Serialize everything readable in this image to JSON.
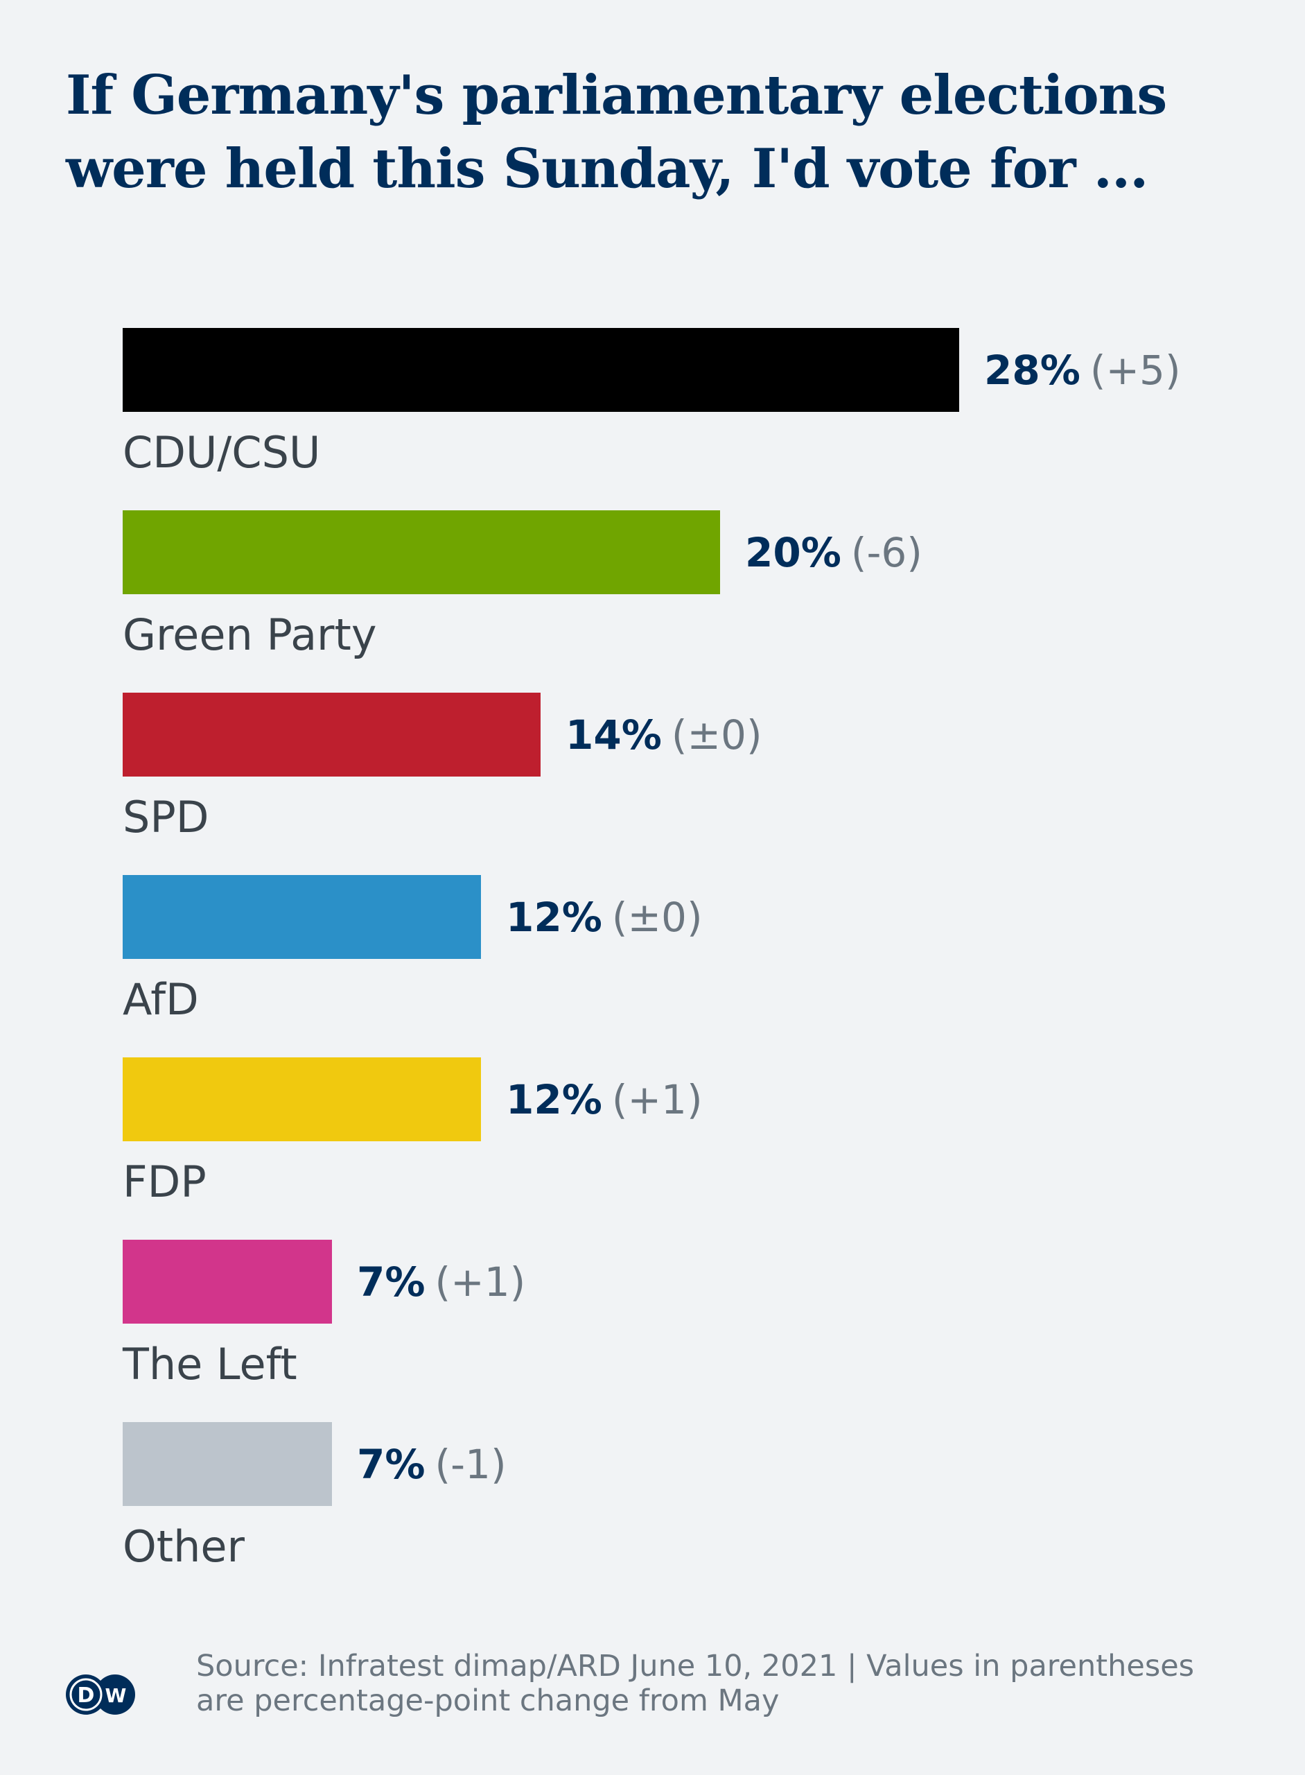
{
  "title": "If Germany's parliamentary elections were held this Sunday, I'd vote for ...",
  "source": "Source: Infratest dimap/ARD June 10, 2021 | Values in parentheses are percentage-point change from May",
  "logo": "DW",
  "rows": [
    {
      "label": "CDU/CSU",
      "pct": "28%",
      "change": "(+5)",
      "color": "#000000"
    },
    {
      "label": "Green Party",
      "pct": "20%",
      "change": "(-6)",
      "color": "#70a500"
    },
    {
      "label": "SPD",
      "pct": "14%",
      "change": "(±0)",
      "color": "#be1f2e"
    },
    {
      "label": "AfD",
      "pct": "12%",
      "change": "(±0)",
      "color": "#2b90c8"
    },
    {
      "label": "FDP",
      "pct": "12%",
      "change": "(+1)",
      "color": "#f0c90f"
    },
    {
      "label": "The Left",
      "pct": "7%",
      "change": "(+1)",
      "color": "#d2358b"
    },
    {
      "label": "Other",
      "pct": "7%",
      "change": "(-1)",
      "color": "#bcc4cc"
    }
  ],
  "chart_data": {
    "type": "bar",
    "orientation": "horizontal",
    "title": "If Germany's parliamentary elections were held this Sunday, I'd vote for ...",
    "categories": [
      "CDU/CSU",
      "Green Party",
      "SPD",
      "AfD",
      "FDP",
      "The Left",
      "Other"
    ],
    "values": [
      28,
      20,
      14,
      12,
      12,
      7,
      7
    ],
    "changes": [
      5,
      -6,
      0,
      0,
      1,
      1,
      -1
    ],
    "unit": "%",
    "colors": [
      "#000000",
      "#70a500",
      "#be1f2e",
      "#2b90c8",
      "#f0c90f",
      "#d2358b",
      "#bcc4cc"
    ],
    "xlabel": "",
    "ylabel": "",
    "grid": false,
    "legend": "none",
    "annotations": [
      "Source: Infratest dimap/ARD June 10, 2021 | Values in parentheses are percentage-point change from May"
    ]
  }
}
